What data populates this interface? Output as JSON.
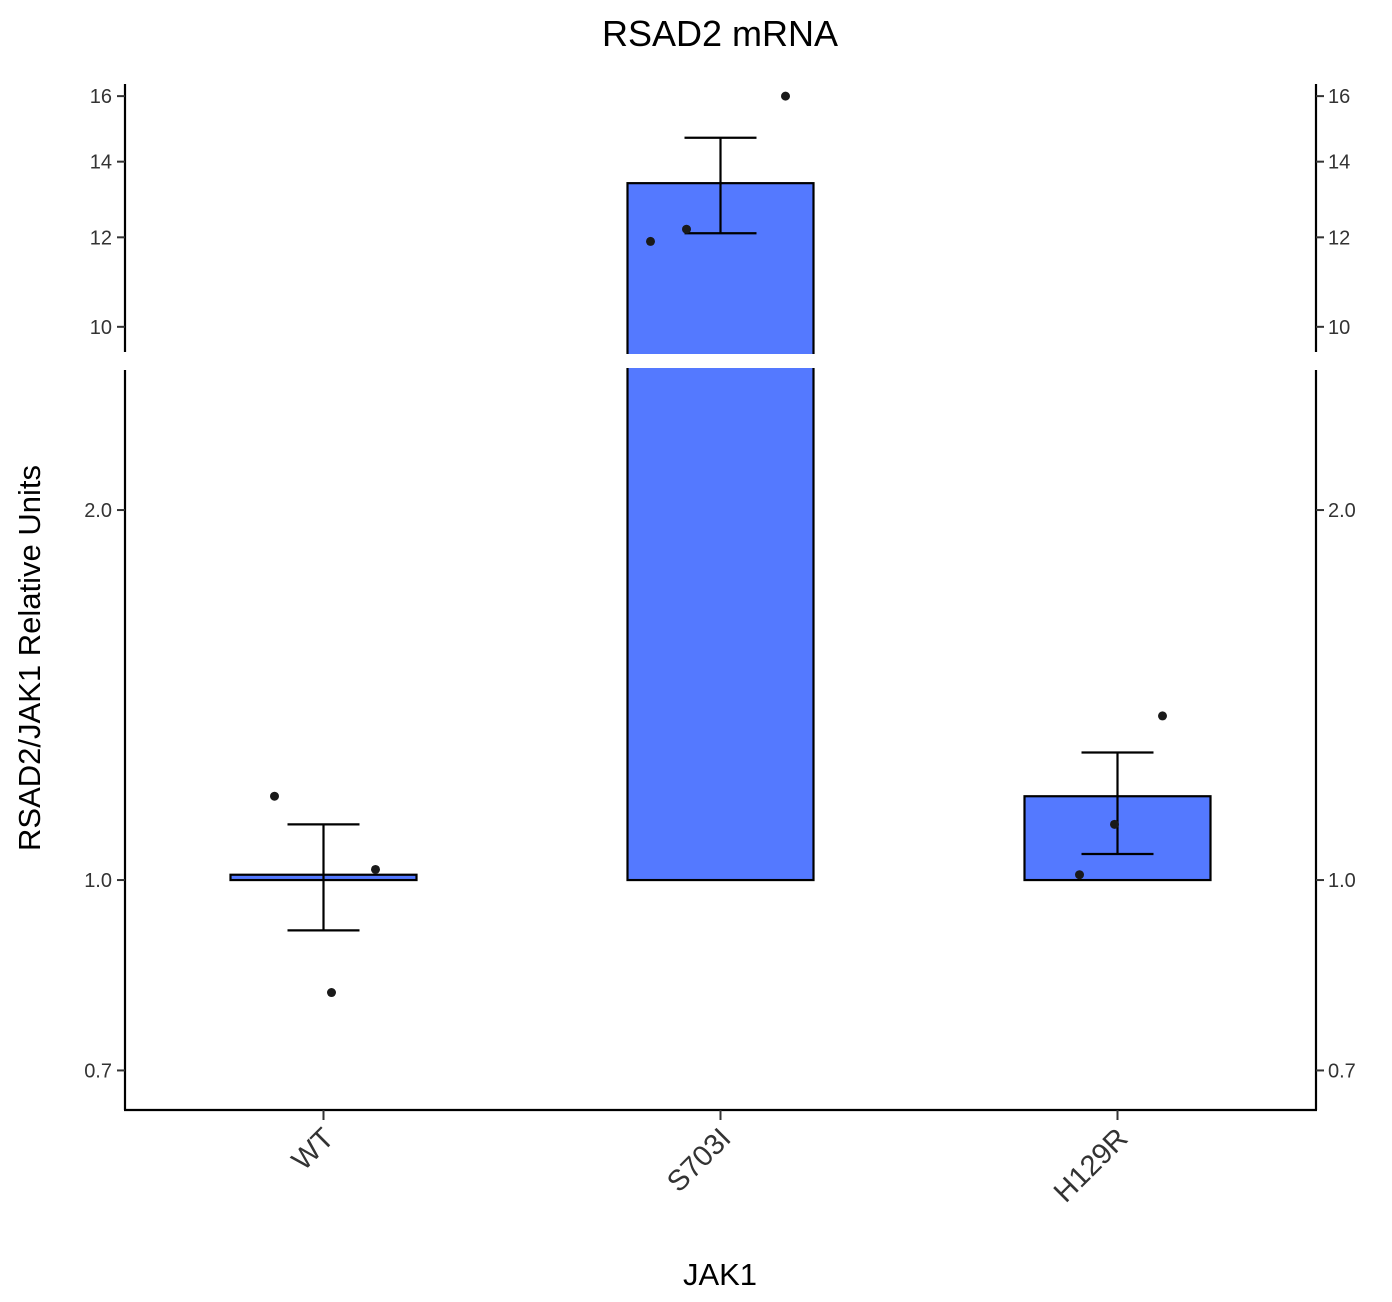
{
  "chart_data": {
    "type": "bar",
    "title": "RSAD2 mRNA",
    "xlabel": "JAK1",
    "ylabel": "RSAD2/JAK1 Relative Units",
    "y_scale": "log",
    "axis_break": [
      2.6,
      9.5
    ],
    "categories": [
      "WT",
      "S703I",
      "H129R"
    ],
    "values": [
      1.01,
      13.4,
      1.17
    ],
    "error_low": [
      0.91,
      12.1,
      1.05
    ],
    "error_high": [
      1.11,
      14.7,
      1.27
    ],
    "points": [
      [
        1.17,
        1.02,
        0.81
      ],
      [
        11.9,
        12.2,
        16.0
      ],
      [
        1.11,
        1.01,
        1.36
      ]
    ],
    "ylim_lower": [
      0.65,
      2.6
    ],
    "ylim_upper": [
      9.5,
      16.4
    ],
    "yticks_lower": [
      0.7,
      1.0,
      2.0
    ],
    "yticks_lower_labels": [
      "0.7",
      "1.0",
      "2.0"
    ],
    "yticks_upper": [
      10,
      12,
      14,
      16
    ],
    "yticks_upper_labels": [
      "10",
      "12",
      "14",
      "16"
    ],
    "bar_color": "#5479ff",
    "grid": false,
    "legend": "none"
  }
}
